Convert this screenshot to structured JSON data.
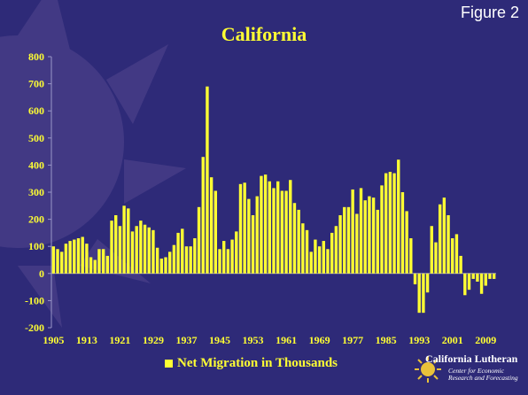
{
  "figure_label": "Figure 2",
  "legend_label": "Net Migration in Thousands",
  "logo": {
    "name": "California Lutheran",
    "line1": "Center for Economic",
    "line2": "Research and Forecasting",
    "line3": ""
  },
  "colors": {
    "background": "#2e2a78",
    "bar": "#ffff33",
    "text": "#ffff33"
  },
  "chart_data": {
    "type": "bar",
    "title": "California",
    "xlabel": "",
    "ylabel": "",
    "ylim": [
      -200,
      800
    ],
    "yticks": [
      -200,
      -100,
      0,
      100,
      200,
      300,
      400,
      500,
      600,
      700,
      800
    ],
    "xtick_labels": [
      "1905",
      "1913",
      "1921",
      "1929",
      "1937",
      "1945",
      "1953",
      "1961",
      "1969",
      "1977",
      "1985",
      "1993",
      "2001",
      "2009"
    ],
    "grid": false,
    "legend_position": "bottom-center",
    "categories": [
      1905,
      1906,
      1907,
      1908,
      1909,
      1910,
      1911,
      1912,
      1913,
      1914,
      1915,
      1916,
      1917,
      1918,
      1919,
      1920,
      1921,
      1922,
      1923,
      1924,
      1925,
      1926,
      1927,
      1928,
      1929,
      1930,
      1931,
      1932,
      1933,
      1934,
      1935,
      1936,
      1937,
      1938,
      1939,
      1940,
      1941,
      1942,
      1943,
      1944,
      1945,
      1946,
      1947,
      1948,
      1949,
      1950,
      1951,
      1952,
      1953,
      1954,
      1955,
      1956,
      1957,
      1958,
      1959,
      1960,
      1961,
      1962,
      1963,
      1964,
      1965,
      1966,
      1967,
      1968,
      1969,
      1970,
      1971,
      1972,
      1973,
      1974,
      1975,
      1976,
      1977,
      1978,
      1979,
      1980,
      1981,
      1982,
      1983,
      1984,
      1985,
      1986,
      1987,
      1988,
      1989,
      1990,
      1991,
      1992,
      1993,
      1994,
      1995,
      1996,
      1997,
      1998,
      1999,
      2000,
      2001,
      2002,
      2003,
      2004,
      2005,
      2006,
      2007,
      2008,
      2009,
      2010,
      2011
    ],
    "values": [
      100,
      90,
      80,
      110,
      120,
      125,
      130,
      135,
      110,
      60,
      50,
      90,
      90,
      65,
      195,
      215,
      175,
      250,
      240,
      155,
      175,
      195,
      180,
      170,
      160,
      95,
      55,
      60,
      80,
      105,
      150,
      165,
      100,
      100,
      130,
      245,
      430,
      690,
      355,
      305,
      90,
      120,
      90,
      125,
      155,
      330,
      335,
      275,
      215,
      285,
      360,
      365,
      340,
      315,
      340,
      305,
      305,
      345,
      260,
      235,
      185,
      160,
      80,
      125,
      100,
      120,
      90,
      150,
      175,
      215,
      245,
      245,
      310,
      220,
      315,
      270,
      285,
      280,
      235,
      325,
      370,
      375,
      370,
      420,
      300,
      230,
      130,
      -40,
      -145,
      -145,
      -70,
      175,
      115,
      255,
      280,
      215,
      130,
      145,
      65,
      -80,
      -60,
      -20,
      -30,
      -75,
      -45,
      -20,
      -20
    ]
  }
}
